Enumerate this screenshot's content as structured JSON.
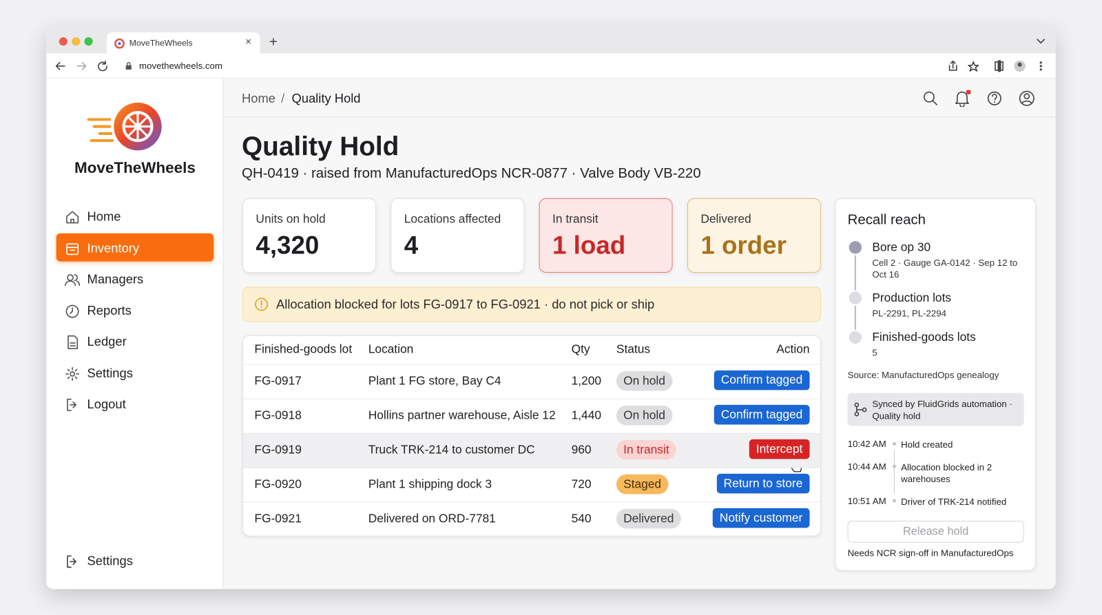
{
  "browser": {
    "tab_title": "MoveTheWheels",
    "url": "movethewheels.com"
  },
  "sidebar": {
    "brand": "MoveTheWheels",
    "nav": [
      "Home",
      "Inventory",
      "Managers",
      "Reports",
      "Ledger",
      "Settings",
      "Logout"
    ],
    "footer_nav": "Settings"
  },
  "breadcrumb": [
    "Home",
    "Quality Hold"
  ],
  "header": {
    "title": "Quality Hold",
    "subtitle": "QH-0419 · raised from ManufacturedOps NCR-0877 · Valve Body VB-220"
  },
  "stats": [
    {
      "label": "Units on hold",
      "value": "4,320"
    },
    {
      "label": "Locations affected",
      "value": "4"
    },
    {
      "label": "In transit",
      "value": "1 load"
    },
    {
      "label": "Delivered",
      "value": "1 order"
    }
  ],
  "alert": "Allocation blocked for lots FG-0917 to FG-0921 · do not pick or ship",
  "table": {
    "columns": [
      "Finished-goods lot",
      "Location",
      "Qty",
      "Status",
      "Action"
    ],
    "rows": [
      [
        "FG-0917",
        "Plant 1 FG store, Bay C4",
        "1,200",
        "On hold",
        "Confirm tagged"
      ],
      [
        "FG-0918",
        "Hollins partner warehouse, Aisle 12",
        "1,440",
        "On hold",
        "Confirm tagged"
      ],
      [
        "FG-0919",
        "Truck TRK-214 to customer DC",
        "960",
        "In transit",
        "Intercept"
      ],
      [
        "FG-0920",
        "Plant 1 shipping dock 3",
        "720",
        "Staged",
        "Return to store"
      ],
      [
        "FG-0921",
        "Delivered on ORD-7781",
        "540",
        "Delivered",
        "Notify customer"
      ]
    ]
  },
  "recall": {
    "title": "Recall reach",
    "steps": [
      {
        "title": "Bore op 30",
        "detail": "Cell 2 · Gauge GA-0142 · Sep 12 to Oct 16"
      },
      {
        "title": "Production lots",
        "detail": "PL-2291, PL-2294"
      },
      {
        "title": "Finished-goods lots",
        "detail": "5"
      }
    ],
    "source": "Source: ManufacturedOps genealogy",
    "sync": "Synced by FluidGrids automation · Quality hold",
    "log": [
      {
        "time": "10:42 AM",
        "event": "Hold created"
      },
      {
        "time": "10:44 AM",
        "event": "Allocation blocked in 2 warehouses"
      },
      {
        "time": "10:51 AM",
        "event": "Driver of TRK-214 notified"
      }
    ],
    "button": "Release hold",
    "note": "Needs NCR sign-off in ManufacturedOps"
  }
}
